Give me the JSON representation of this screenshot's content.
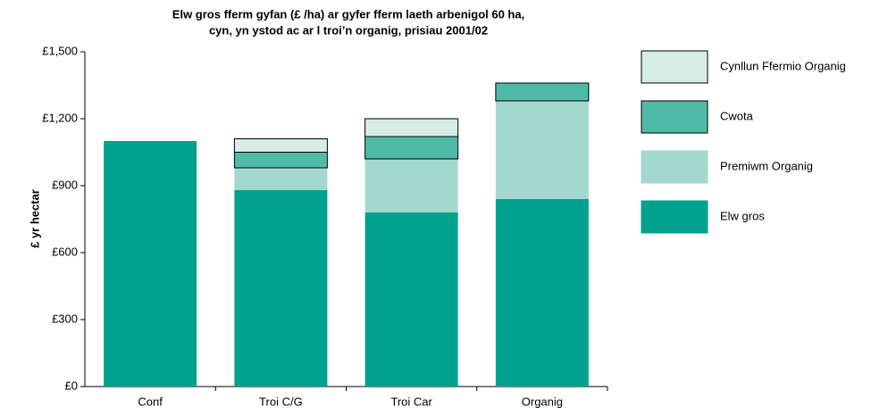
{
  "chart_data": {
    "type": "stacked_bar",
    "title": [
      "Elw gros fferm gyfan (£ /ha) ar gyfer fferm laeth arbenigol 60 ha,",
      "cyn, yn ystod ac ar  l troi’n organig, prisiau 2001/02"
    ],
    "ylabel": "£ yr hectar",
    "categories": [
      "Conf",
      "Troi C/G",
      "Troi Car",
      "Organig"
    ],
    "series": [
      {
        "name": "Elw gros",
        "color": "#00a28e",
        "edgecolor": "none",
        "values": [
          1100,
          880,
          780,
          840
        ]
      },
      {
        "name": "Premiwm Organig",
        "color": "#a3d9cc",
        "edgecolor": "none",
        "values": [
          0,
          100,
          240,
          440
        ]
      },
      {
        "name": "Cwota",
        "color": "#4fbaa7",
        "edgecolor": "#000000",
        "values": [
          0,
          70,
          100,
          80
        ]
      },
      {
        "name": "Cynllun Ffermio Organig",
        "color": "#d6ede6",
        "edgecolor": "#000000",
        "values": [
          0,
          60,
          80,
          0
        ]
      }
    ],
    "ylim": [
      0,
      1500
    ],
    "yticks": [
      {
        "value": 0,
        "label": "£0"
      },
      {
        "value": 300,
        "label": "£300"
      },
      {
        "value": 600,
        "label": "£600"
      },
      {
        "value": 900,
        "label": "£900"
      },
      {
        "value": 1200,
        "label": "£1,200"
      },
      {
        "value": 1500,
        "label": "£1,500"
      }
    ],
    "grid": false,
    "legend": "right"
  }
}
